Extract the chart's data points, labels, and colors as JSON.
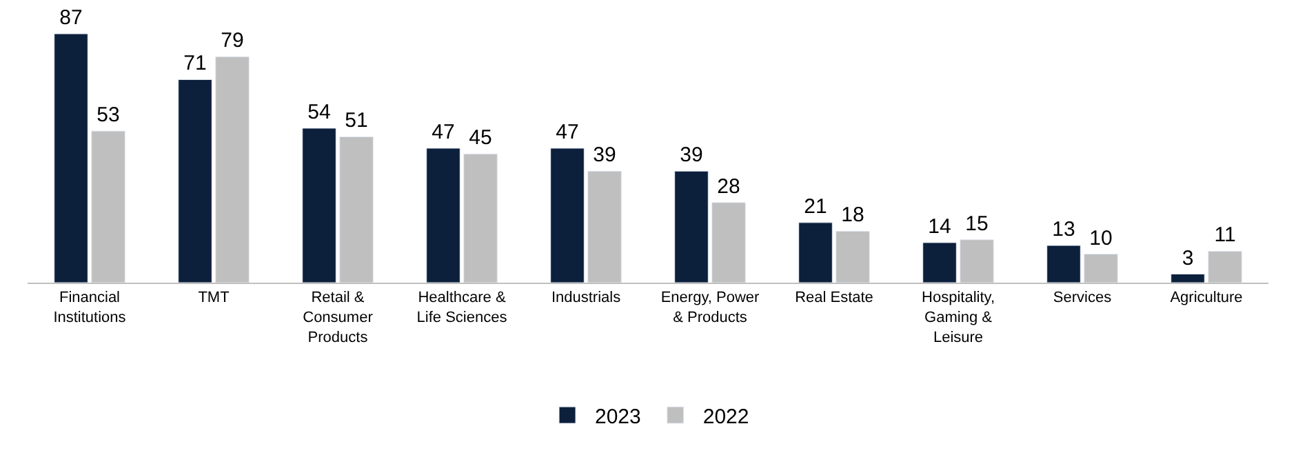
{
  "chart_data": {
    "type": "bar",
    "categories": [
      "Financial Institutions",
      "TMT",
      "Retail & Consumer Products",
      "Healthcare & Life Sciences",
      "Industrials",
      "Energy, Power & Products",
      "Real Estate",
      "Hospitality, Gaming & Leisure",
      "Services",
      "Agriculture"
    ],
    "series": [
      {
        "name": "2023",
        "color": "#0c1f3b",
        "values": [
          87,
          71,
          54,
          47,
          47,
          39,
          21,
          14,
          13,
          3
        ]
      },
      {
        "name": "2022",
        "color": "#bfbfbf",
        "values": [
          53,
          79,
          51,
          45,
          39,
          28,
          18,
          15,
          10,
          11
        ]
      }
    ],
    "data_labels": true,
    "legend": "bottom"
  }
}
